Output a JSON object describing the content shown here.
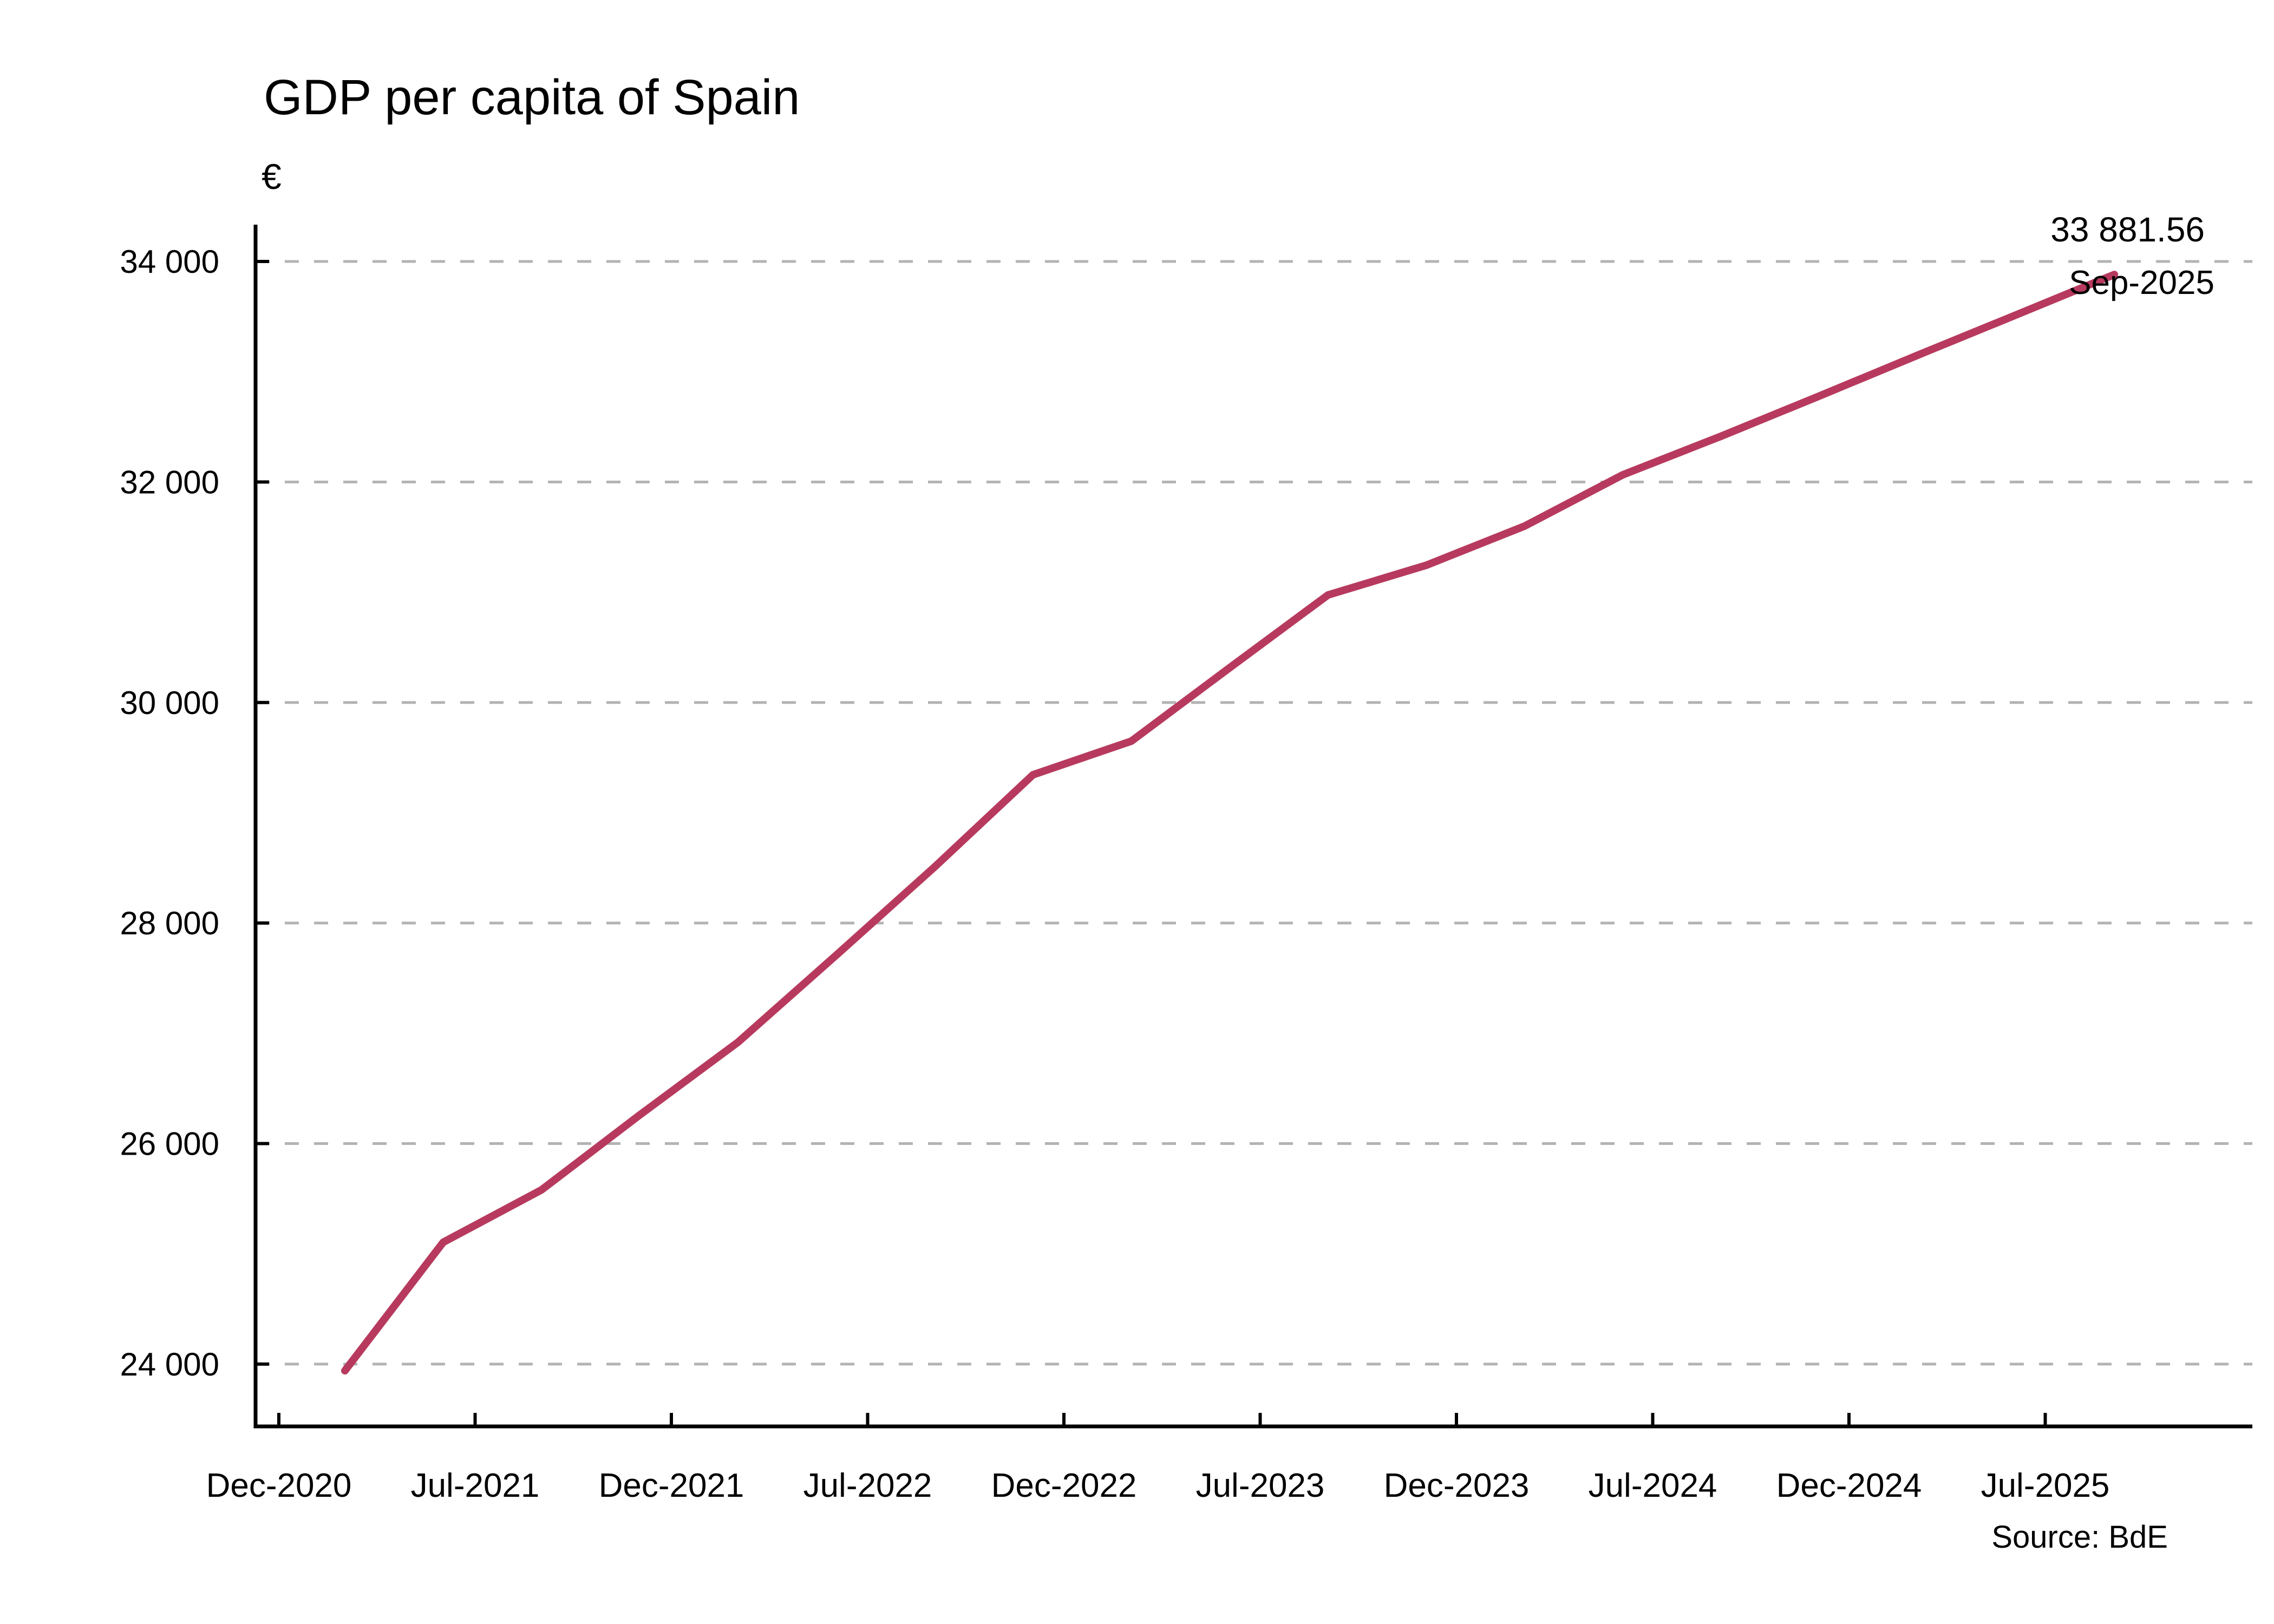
{
  "header": {
    "title": "GDP per capita of Spain",
    "currency_label": "€"
  },
  "annotation": {
    "value": "33 881.56",
    "date": "Sep-2025"
  },
  "footer": {
    "source": "Source: BdE"
  },
  "colors": {
    "line": "#B73A5E",
    "gridline": "#B3B3B3",
    "axis": "#000000",
    "text": "#000000",
    "background": "#FFFFFF"
  },
  "chart_data": {
    "type": "line",
    "title": "GDP per capita of Spain",
    "ylabel": "€",
    "xlabel": "",
    "legend": "none",
    "grid": "horizontal-dashed",
    "ylim": [
      23400,
      34600
    ],
    "y_ticks": [
      {
        "label": "24 000",
        "value": 24000
      },
      {
        "label": "26 000",
        "value": 26000
      },
      {
        "label": "28 000",
        "value": 28000
      },
      {
        "label": "30 000",
        "value": 30000
      },
      {
        "label": "32 000",
        "value": 32000
      },
      {
        "label": "34 000",
        "value": 34000
      }
    ],
    "x_tick_labels": [
      "Dec-2020",
      "Jul-2021",
      "Dec-2021",
      "Jul-2022",
      "Dec-2022",
      "Jul-2023",
      "Dec-2023",
      "Jul-2024",
      "Dec-2024",
      "Jul-2025"
    ],
    "series": [
      {
        "name": "GDP per capita",
        "categories": [
          "Mar-2021",
          "Jun-2021",
          "Sep-2021",
          "Dec-2021",
          "Mar-2022",
          "Jun-2022",
          "Sep-2022",
          "Dec-2022",
          "Mar-2023",
          "Jun-2023",
          "Sep-2023",
          "Dec-2023",
          "Mar-2024",
          "Jun-2024",
          "Sep-2024",
          "Dec-2024",
          "Mar-2025",
          "Jun-2025",
          "Sep-2025"
        ],
        "values": [
          23940,
          25105,
          25580,
          26260,
          26920,
          27710,
          28510,
          29345,
          29650,
          30315,
          30975,
          31245,
          31600,
          32065,
          32415,
          32780,
          33150,
          33515,
          33881.56
        ]
      }
    ],
    "last_point": {
      "category": "Sep-2025",
      "value": 33881.56,
      "label": "33 881.56"
    }
  }
}
